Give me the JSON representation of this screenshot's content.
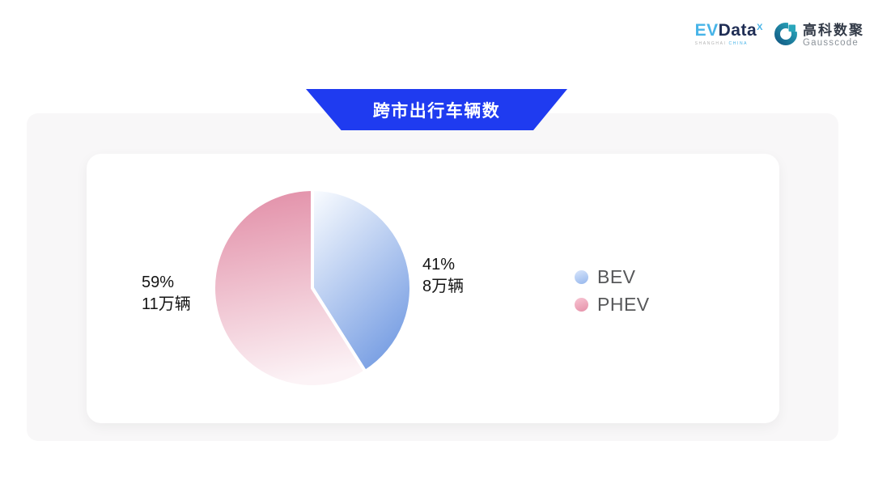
{
  "header": {
    "evdata_logo": {
      "ev": "EV",
      "data": "Data",
      "sup": "X",
      "sub_left": "SHANGHAI",
      "sub_right": "CHINA"
    },
    "gausscode_logo": {
      "cn": "高科数聚",
      "en": "Gausscode"
    }
  },
  "banner": {
    "title": "跨市出行车辆数",
    "color": "#1f3bf0"
  },
  "chart_data": {
    "type": "pie",
    "title": "跨市出行车辆数",
    "unit": "万辆",
    "start_angle_deg": 0,
    "clockwise": true,
    "legend_position": "right",
    "series": [
      {
        "name": "BEV",
        "value": 8,
        "percent": 41,
        "percent_label": "41%",
        "value_label": "8万辆",
        "color_start": "#fbfdff",
        "color_end": "#7da2e4"
      },
      {
        "name": "PHEV",
        "value": 11,
        "percent": 59,
        "percent_label": "59%",
        "value_label": "11万辆",
        "color_start": "#e28ea7",
        "color_end": "#fcf3f6"
      }
    ],
    "legend": [
      {
        "label": "BEV",
        "color_light": "#d2e1fa",
        "color": "#9cbbee"
      },
      {
        "label": "PHEV",
        "color_light": "#f6c0cf",
        "color": "#e795ac"
      }
    ]
  }
}
